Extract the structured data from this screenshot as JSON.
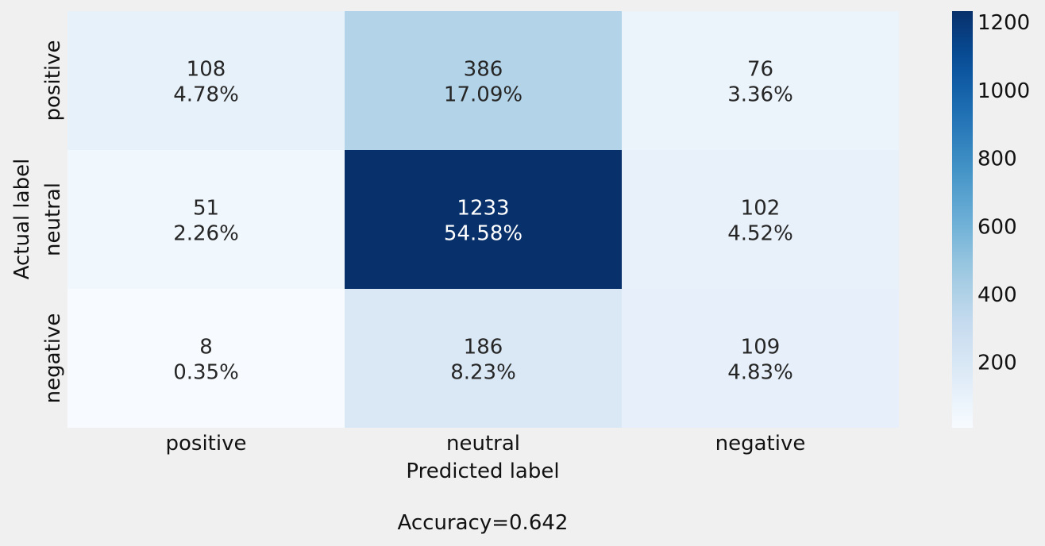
{
  "chart_data": {
    "type": "heatmap",
    "xlabel": "Predicted label",
    "ylabel": "Actual label",
    "x_categories": [
      "positive",
      "neutral",
      "negative"
    ],
    "y_categories": [
      "positive",
      "neutral",
      "negative"
    ],
    "values": [
      [
        108,
        386,
        76
      ],
      [
        51,
        1233,
        102
      ],
      [
        8,
        186,
        109
      ]
    ],
    "percentages": [
      [
        "4.78%",
        "17.09%",
        "3.36%"
      ],
      [
        "2.26%",
        "54.58%",
        "4.52%"
      ],
      [
        "0.35%",
        "8.23%",
        "4.83%"
      ]
    ],
    "colormap": "Blues",
    "colorbar": {
      "range": [
        8,
        1233
      ],
      "ticks": [
        200,
        400,
        600,
        800,
        1000,
        1200
      ]
    },
    "footer": "Accuracy=0.642"
  }
}
